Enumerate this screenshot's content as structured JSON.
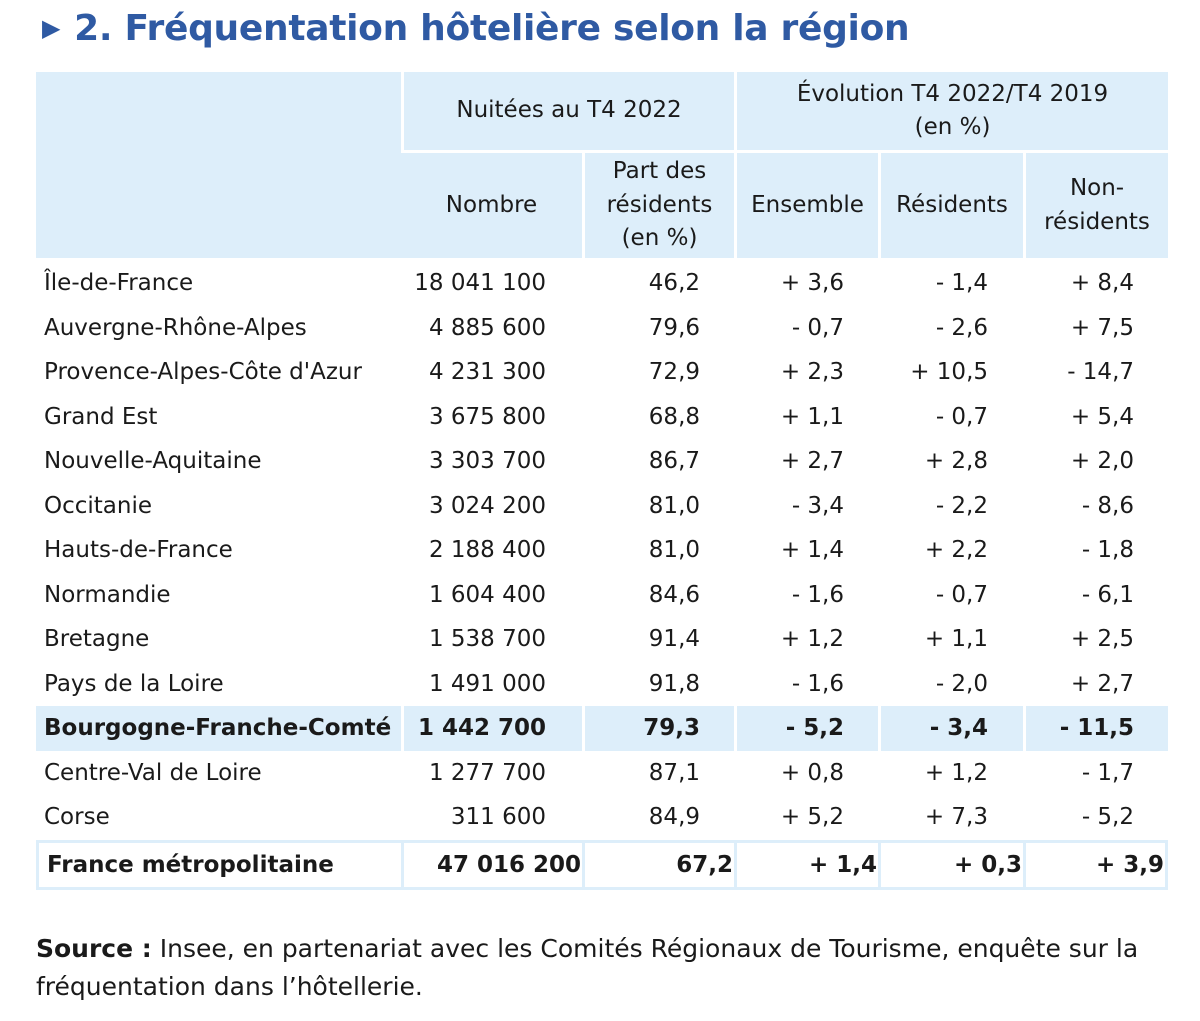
{
  "title": {
    "marker": "▶",
    "text": "2. Fréquentation hôtelière selon la région"
  },
  "table": {
    "group_headers": {
      "nuitees": "Nuitées au T4 2022",
      "evolution": "Évolution T4 2022/T4 2019",
      "evolution_unit": "(en %)"
    },
    "column_headers": {
      "nombre": "Nombre",
      "part_line1": "Part des",
      "part_line2": "résidents",
      "part_line3": "(en %)",
      "ensemble": "Ensemble",
      "residents": "Résidents",
      "non_residents_line1": "Non-",
      "non_residents_line2": "résidents"
    },
    "rows": [
      {
        "region": "Île-de-France",
        "nombre": "18 041 100",
        "part": "46,2",
        "ensemble": "+ 3,6",
        "residents": "- 1,4",
        "non_residents": "+ 8,4"
      },
      {
        "region": "Auvergne-Rhône-Alpes",
        "nombre": "4 885 600",
        "part": "79,6",
        "ensemble": "- 0,7",
        "residents": "- 2,6",
        "non_residents": "+ 7,5"
      },
      {
        "region": "Provence-Alpes-Côte d'Azur",
        "nombre": "4 231 300",
        "part": "72,9",
        "ensemble": "+ 2,3",
        "residents": "+ 10,5",
        "non_residents": "- 14,7"
      },
      {
        "region": "Grand Est",
        "nombre": "3 675 800",
        "part": "68,8",
        "ensemble": "+ 1,1",
        "residents": "- 0,7",
        "non_residents": "+ 5,4"
      },
      {
        "region": "Nouvelle-Aquitaine",
        "nombre": "3 303 700",
        "part": "86,7",
        "ensemble": "+ 2,7",
        "residents": "+ 2,8",
        "non_residents": "+ 2,0"
      },
      {
        "region": "Occitanie",
        "nombre": "3 024 200",
        "part": "81,0",
        "ensemble": "- 3,4",
        "residents": "- 2,2",
        "non_residents": "- 8,6"
      },
      {
        "region": "Hauts-de-France",
        "nombre": "2 188 400",
        "part": "81,0",
        "ensemble": "+ 1,4",
        "residents": "+ 2,2",
        "non_residents": "- 1,8"
      },
      {
        "region": "Normandie",
        "nombre": "1 604 400",
        "part": "84,6",
        "ensemble": "- 1,6",
        "residents": "- 0,7",
        "non_residents": "- 6,1"
      },
      {
        "region": "Bretagne",
        "nombre": "1 538 700",
        "part": "91,4",
        "ensemble": "+ 1,2",
        "residents": "+ 1,1",
        "non_residents": "+ 2,5"
      },
      {
        "region": "Pays de la Loire",
        "nombre": "1 491 000",
        "part": "91,8",
        "ensemble": "- 1,6",
        "residents": "- 2,0",
        "non_residents": "+ 2,7"
      },
      {
        "region": "Bourgogne-Franche-Comté",
        "nombre": "1 442 700",
        "part": "79,3",
        "ensemble": "- 5,2",
        "residents": "- 3,4",
        "non_residents": "- 11,5"
      },
      {
        "region": "Centre-Val de Loire",
        "nombre": "1 277 700",
        "part": "87,1",
        "ensemble": "+ 0,8",
        "residents": "+ 1,2",
        "non_residents": "- 1,7"
      },
      {
        "region": "Corse",
        "nombre": "311 600",
        "part": "84,9",
        "ensemble": "+ 5,2",
        "residents": "+ 7,3",
        "non_residents": "- 5,2"
      }
    ],
    "total": {
      "region": "France métropolitaine",
      "nombre": "47 016 200",
      "part": "67,2",
      "ensemble": "+ 1,4",
      "residents": "+ 0,3",
      "non_residents": "+ 3,9"
    }
  },
  "source": {
    "label": "Source :",
    "text": " Insee, en partenariat avec les Comités Régionaux de Tourisme, enquête sur la fréquentation dans l’hôtellerie."
  },
  "colors": {
    "title_blue": "#2f5aa3",
    "header_fill": "#ddeefa"
  }
}
